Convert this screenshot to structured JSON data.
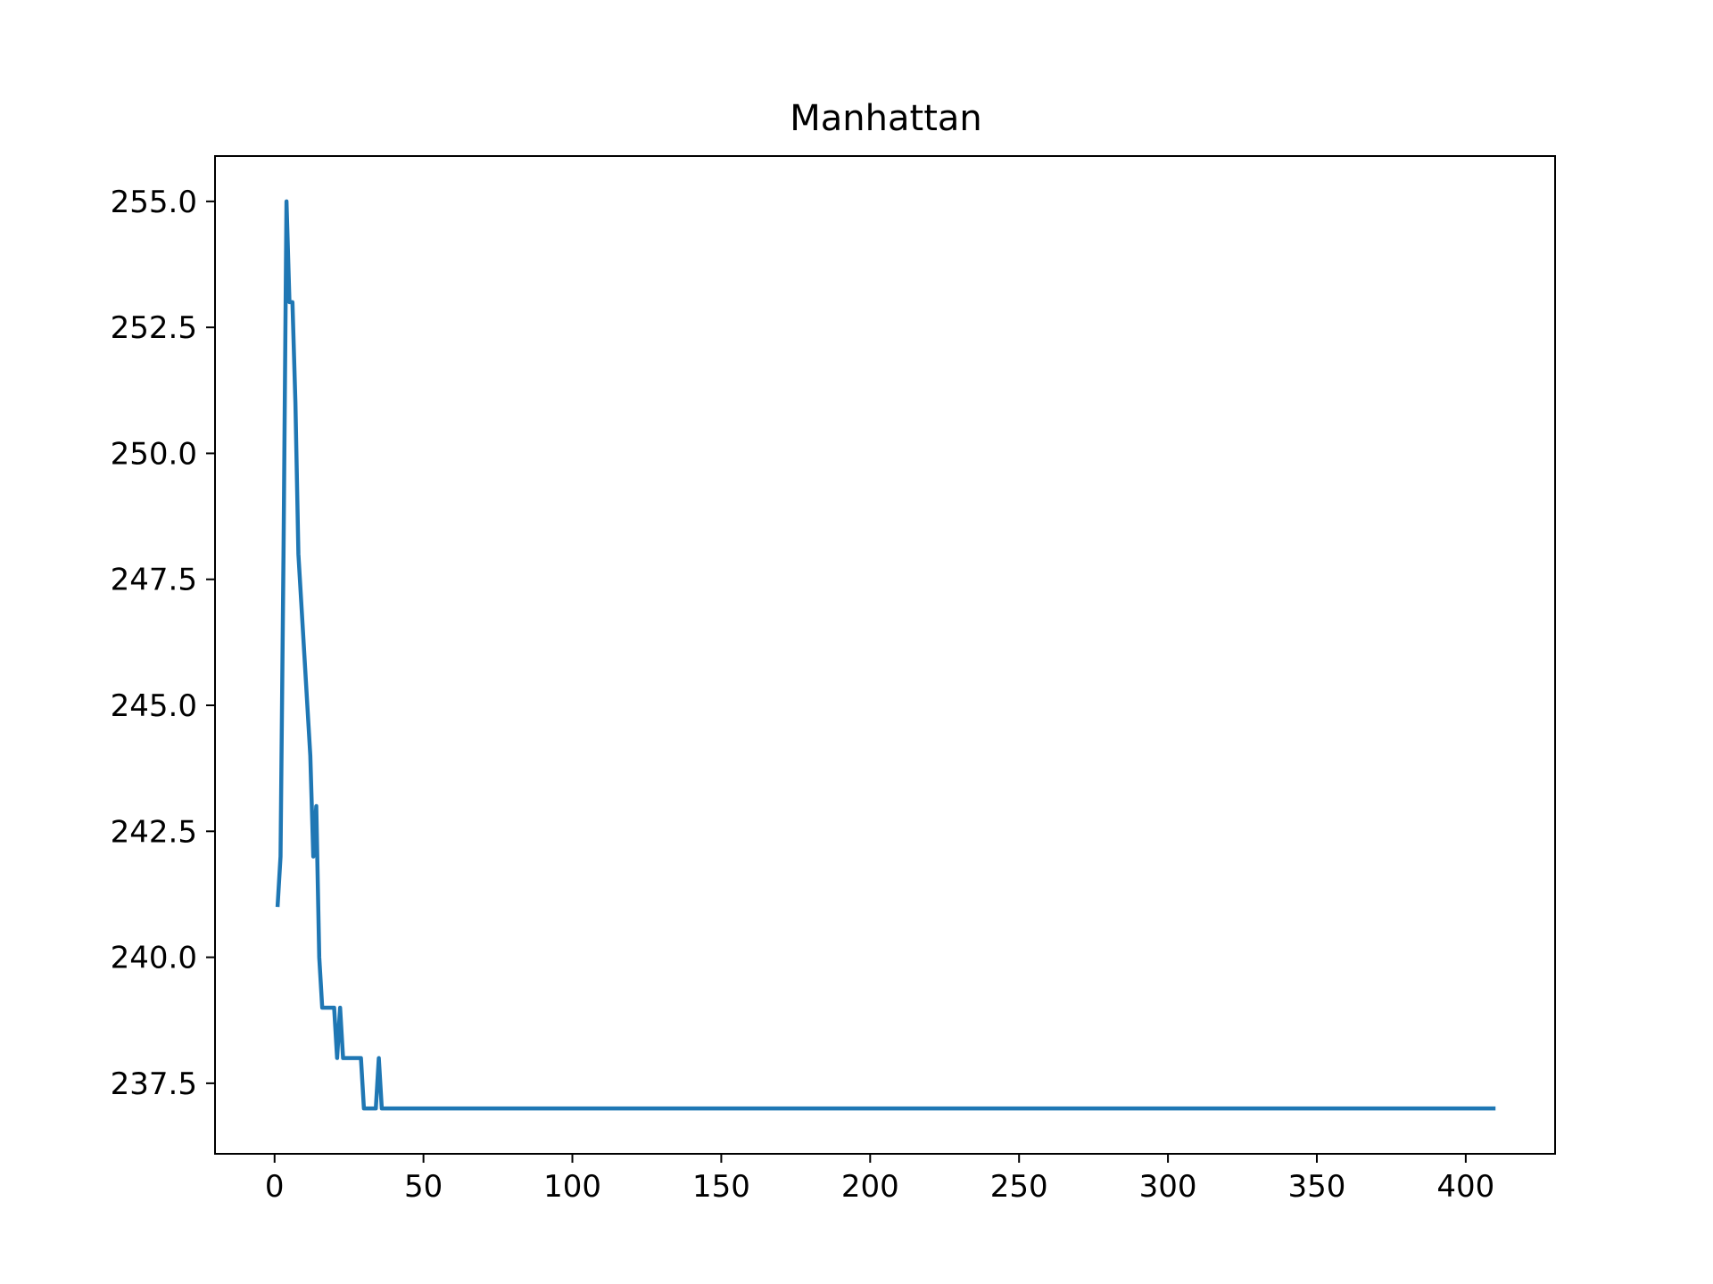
{
  "chart_data": {
    "type": "line",
    "title": "Manhattan",
    "xlabel": "",
    "ylabel": "",
    "xlim": [
      -20,
      430
    ],
    "ylim": [
      236.1,
      255.9
    ],
    "x_ticks": [
      0,
      50,
      100,
      150,
      200,
      250,
      300,
      350,
      400
    ],
    "y_ticks": [
      237.5,
      240.0,
      242.5,
      245.0,
      247.5,
      250.0,
      252.5,
      255.0
    ],
    "grid": false,
    "legend": "none",
    "series": [
      {
        "color": "#1f77b4",
        "x": [
          1,
          2,
          3,
          4,
          5,
          6,
          7,
          8,
          9,
          10,
          11,
          12,
          13,
          14,
          15,
          16,
          17,
          18,
          19,
          20,
          21,
          22,
          23,
          24,
          25,
          26,
          27,
          28,
          29,
          30,
          31,
          32,
          33,
          34,
          35,
          36,
          37,
          38,
          39,
          40,
          410
        ],
        "y": [
          241,
          242,
          248,
          255,
          253,
          253,
          251,
          248,
          247,
          246,
          245,
          244,
          242,
          243,
          240,
          239,
          239,
          239,
          239,
          239,
          238,
          239,
          238,
          238,
          238,
          238,
          238,
          238,
          238,
          237,
          237,
          237,
          237,
          237,
          238,
          237,
          237,
          237,
          237,
          237,
          237
        ]
      }
    ]
  }
}
